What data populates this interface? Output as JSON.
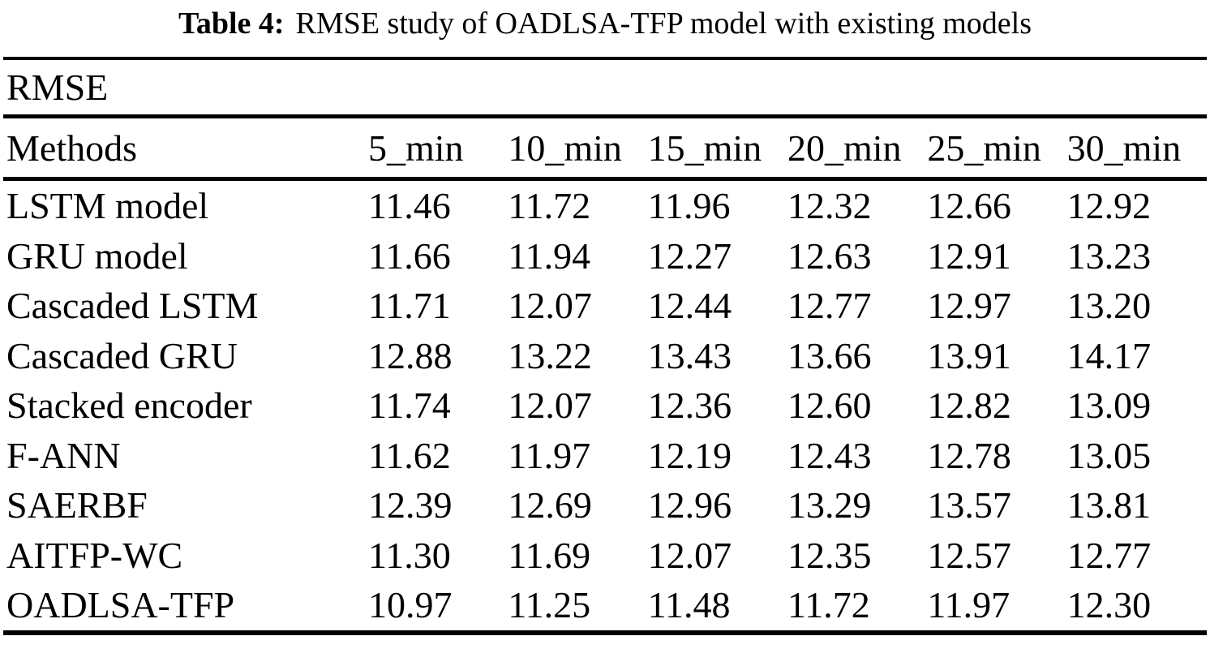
{
  "caption": {
    "label": "Table 4:",
    "text": "RMSE study of OADLSA-TFP model with existing models"
  },
  "table": {
    "group_header": "RMSE",
    "columns": [
      "Methods",
      "5_min",
      "10_min",
      "15_min",
      "20_min",
      "25_min",
      "30_min"
    ],
    "rows": [
      {
        "method": "LSTM model",
        "values": [
          "11.46",
          "11.72",
          "11.96",
          "12.32",
          "12.66",
          "12.92"
        ]
      },
      {
        "method": "GRU model",
        "values": [
          "11.66",
          "11.94",
          "12.27",
          "12.63",
          "12.91",
          "13.23"
        ]
      },
      {
        "method": "Cascaded LSTM",
        "values": [
          "11.71",
          "12.07",
          "12.44",
          "12.77",
          "12.97",
          "13.20"
        ]
      },
      {
        "method": "Cascaded GRU",
        "values": [
          "12.88",
          "13.22",
          "13.43",
          "13.66",
          "13.91",
          "14.17"
        ]
      },
      {
        "method": "Stacked encoder",
        "values": [
          "11.74",
          "12.07",
          "12.36",
          "12.60",
          "12.82",
          "13.09"
        ]
      },
      {
        "method": "F-ANN",
        "values": [
          "11.62",
          "11.97",
          "12.19",
          "12.43",
          "12.78",
          "13.05"
        ]
      },
      {
        "method": "SAERBF",
        "values": [
          "12.39",
          "12.69",
          "12.96",
          "13.29",
          "13.57",
          "13.81"
        ]
      },
      {
        "method": "AITFP-WC",
        "values": [
          "11.30",
          "11.69",
          "12.07",
          "12.35",
          "12.57",
          "12.77"
        ]
      },
      {
        "method": "OADLSA-TFP",
        "values": [
          "10.97",
          "11.25",
          "11.48",
          "11.72",
          "11.97",
          "12.30"
        ]
      }
    ]
  },
  "colors": {
    "text": "#000000",
    "background": "#ffffff",
    "rule": "#000000"
  }
}
